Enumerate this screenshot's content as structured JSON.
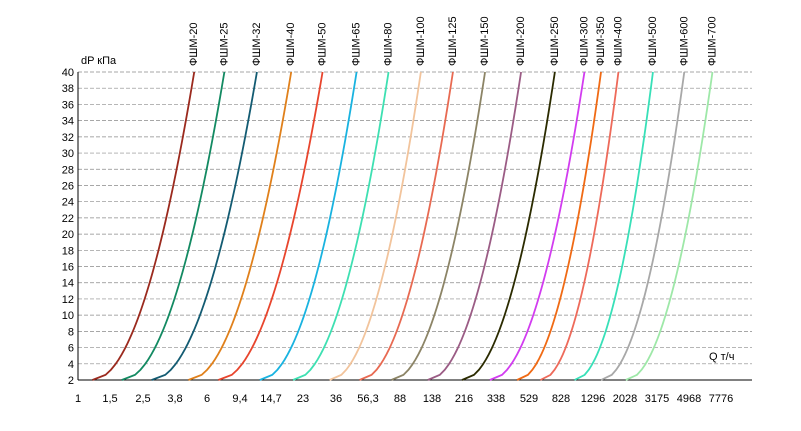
{
  "chart_data": {
    "type": "line",
    "ylabel": "dP кПа",
    "xlabel": "Q т/ч",
    "ylim": [
      2,
      40
    ],
    "y_ticks": [
      "2",
      "4",
      "6",
      "8",
      "10",
      "12",
      "14",
      "16",
      "18",
      "20",
      "22",
      "24",
      "26",
      "28",
      "30",
      "32",
      "34",
      "36",
      "38",
      "40"
    ],
    "x_ticks": [
      "1",
      "1,5",
      "2,5",
      "3,8",
      "6",
      "9,4",
      "14,7",
      "23",
      "36",
      "56,3",
      "88",
      "138",
      "216",
      "338",
      "529",
      "828",
      "1296",
      "2028",
      "3175",
      "4968",
      "7776"
    ],
    "grid": "horizontal dashed",
    "series": [
      {
        "name": "ФШМ-20",
        "color": "#9b2a1e",
        "x_start": 1.2,
        "x_end": 5.0
      },
      {
        "name": "ФШМ-25",
        "color": "#138a62",
        "x_start": 1.8,
        "x_end": 7.6
      },
      {
        "name": "ФШМ-32",
        "color": "#135b72",
        "x_start": 2.8,
        "x_end": 12.0
      },
      {
        "name": "ФШМ-40",
        "color": "#e0801b",
        "x_start": 4.6,
        "x_end": 19.5
      },
      {
        "name": "ФШМ-50",
        "color": "#e8452d",
        "x_start": 7.0,
        "x_end": 30
      },
      {
        "name": "ФШМ-65",
        "color": "#19b3e0",
        "x_start": 12.5,
        "x_end": 48
      },
      {
        "name": "ФШМ-80",
        "color": "#3ee0b2",
        "x_start": 20,
        "x_end": 75
      },
      {
        "name": "ФШМ-100",
        "color": "#f2c49c",
        "x_start": 33,
        "x_end": 118
      },
      {
        "name": "ФШМ-125",
        "color": "#e86a52",
        "x_start": 50,
        "x_end": 185
      },
      {
        "name": "ФШМ-150",
        "color": "#8c8466",
        "x_start": 78,
        "x_end": 290
      },
      {
        "name": "ФШМ-200",
        "color": "#9b5c85",
        "x_start": 130,
        "x_end": 475
      },
      {
        "name": "ФШМ-250",
        "color": "#2b2b00",
        "x_start": 210,
        "x_end": 760
      },
      {
        "name": "ФШМ-300",
        "color": "#d23cf0",
        "x_start": 310,
        "x_end": 1150
      },
      {
        "name": "ФШМ-350",
        "color": "#f06a14",
        "x_start": 450,
        "x_end": 1450
      },
      {
        "name": "ФШМ-400",
        "color": "#ee6a5a",
        "x_start": 620,
        "x_end": 1850
      },
      {
        "name": "ФШМ-500",
        "color": "#38e0b8",
        "x_start": 1000,
        "x_end": 3000
      },
      {
        "name": "ФШМ-600",
        "color": "#a8a8a8",
        "x_start": 1450,
        "x_end": 4650
      },
      {
        "name": "ФШМ-700",
        "color": "#9ee8a8",
        "x_start": 2050,
        "x_end": 6900
      }
    ]
  }
}
